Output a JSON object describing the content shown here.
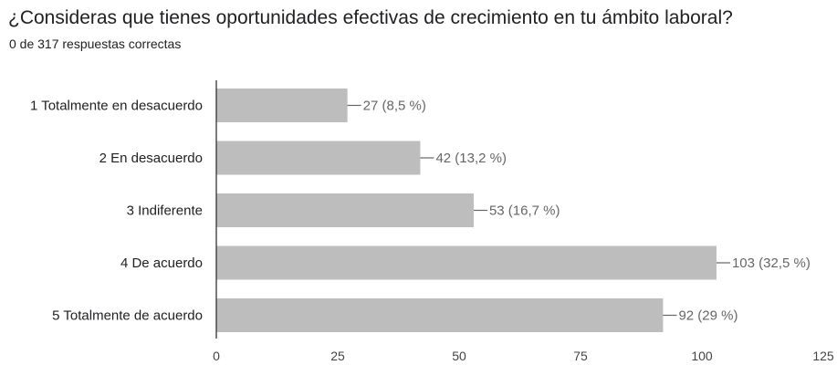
{
  "header": {
    "title": "¿Consideras que tienes oportunidades efectivas de crecimiento en tu ámbito laboral?",
    "subtitle": "0 de 317 respuestas correctas"
  },
  "colors": {
    "bar": "#bdbdbd",
    "axis": "#333333",
    "leader": "#666666"
  },
  "chart_data": {
    "type": "bar",
    "orientation": "horizontal",
    "categories": [
      "1 Totalmente en desacuerdo",
      "2 En desacuerdo",
      "3 Indiferente",
      "4 De acuerdo",
      "5 Totalmente de acuerdo"
    ],
    "values": [
      27,
      42,
      53,
      103,
      92
    ],
    "data_labels": [
      "27 (8,5 %)",
      "42 (13,2 %)",
      "53 (16,7 %)",
      "103 (32,5 %)",
      "92 (29 %)"
    ],
    "xlim": [
      0,
      125
    ],
    "xticks": [
      0,
      25,
      50,
      75,
      100,
      125
    ],
    "grid": false,
    "legend": "none"
  }
}
